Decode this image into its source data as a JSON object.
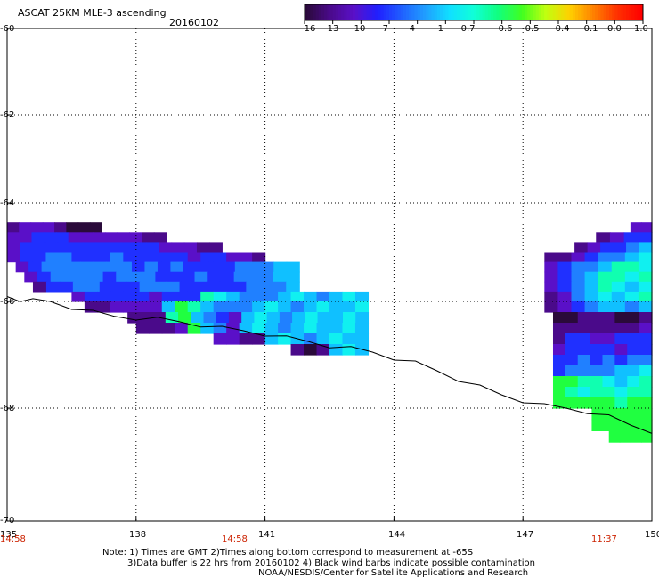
{
  "header": {
    "title": "ASCAT 25KM MLE-3 ascending",
    "date": "20160102"
  },
  "colorbar": {
    "labels": [
      "-16",
      "-13",
      "-10",
      "-7",
      "-4",
      "-1",
      "-0.7",
      "-0.6",
      "-0.5",
      "-0.4",
      "-0.1",
      "0.0",
      "1.0"
    ],
    "colors": [
      "#2a0a3a",
      "#4a0a8a",
      "#5a10c8",
      "#2020ff",
      "#2060ff",
      "#20a0ff",
      "#10e0ff",
      "#10ffd8",
      "#10ff80",
      "#40ff20",
      "#c0ff10",
      "#ffd000",
      "#ff8000",
      "#ff3000",
      "#ff0000"
    ]
  },
  "axes": {
    "y_labels": [
      "-60",
      "-62",
      "-64",
      "-66",
      "-68",
      "-70"
    ],
    "x_labels": [
      "135",
      "138",
      "141",
      "144",
      "147",
      "150"
    ],
    "times": [
      "14:58",
      "14:58",
      "11:37"
    ]
  },
  "notes": {
    "line1": "Note: 1) Times are GMT 2)Times along bottom correspond to measurement at -65S",
    "line2": "3)Data buffer is 22 hrs from 20160102 4) Black wind barbs indicate possible contamination",
    "line3": "NOAA/NESDIS/Center for Satellite Applications and Research"
  },
  "map_data": {
    "lon_range": [
      135,
      150
    ],
    "lat_range": [
      -70,
      -60
    ],
    "coastline_lonlat": [
      [
        135.0,
        -65.9
      ],
      [
        135.3,
        -65.95
      ],
      [
        135.6,
        -65.98
      ],
      [
        136.0,
        -66.0
      ],
      [
        136.5,
        -66.1
      ],
      [
        137.0,
        -66.2
      ],
      [
        137.5,
        -66.28
      ],
      [
        138.0,
        -66.3
      ],
      [
        138.5,
        -66.33
      ],
      [
        139.0,
        -66.38
      ],
      [
        139.5,
        -66.43
      ],
      [
        140.0,
        -66.5
      ],
      [
        140.5,
        -66.55
      ],
      [
        141.0,
        -66.6
      ],
      [
        141.5,
        -66.68
      ],
      [
        142.0,
        -66.75
      ],
      [
        142.5,
        -66.82
      ],
      [
        143.0,
        -66.88
      ],
      [
        143.5,
        -66.95
      ],
      [
        144.0,
        -67.05
      ],
      [
        144.5,
        -67.15
      ],
      [
        145.0,
        -67.3
      ],
      [
        145.5,
        -67.45
      ],
      [
        146.0,
        -67.6
      ],
      [
        146.5,
        -67.75
      ],
      [
        147.0,
        -67.85
      ],
      [
        147.5,
        -67.95
      ],
      [
        148.0,
        -68.0
      ],
      [
        148.5,
        -68.05
      ],
      [
        149.0,
        -68.15
      ],
      [
        149.5,
        -68.3
      ],
      [
        150.0,
        -68.4
      ]
    ],
    "swaths": [
      {
        "name": "west",
        "rows": [
          {
            "lat": -64.5,
            "lon": [
              135.0,
              137.2
            ],
            "vals": [
              -12,
              -10,
              -9,
              -10,
              -12,
              -15,
              -14,
              -14
            ]
          },
          {
            "lat": -64.7,
            "lon": [
              135.0,
              138.7
            ],
            "vals": [
              -10,
              -8,
              -7,
              -6,
              -7,
              -9,
              -8,
              -9,
              -10,
              -9,
              -8,
              -12,
              -13
            ]
          },
          {
            "lat": -64.9,
            "lon": [
              135.0,
              140.0
            ],
            "vals": [
              -9,
              -7,
              -6,
              -5,
              -5,
              -6,
              -7,
              -5,
              -6,
              -7,
              -6,
              -7,
              -8,
              -9,
              -10,
              -11,
              -12
            ]
          },
          {
            "lat": -65.1,
            "lon": [
              135.0,
              141.0
            ],
            "vals": [
              -8,
              -6,
              -5,
              -4,
              -4,
              -5,
              -6,
              -5,
              -4,
              -5,
              -6,
              -5,
              -6,
              -7,
              -8,
              -7,
              -6,
              -9,
              -10,
              -11
            ]
          },
          {
            "lat": -65.3,
            "lon": [
              135.2,
              141.8
            ],
            "vals": [
              -9,
              -5,
              -4,
              -4,
              -3,
              -4,
              -4,
              -3,
              -4,
              -5,
              -4,
              -5,
              -4,
              -6,
              -7,
              -6,
              -5,
              -4,
              -3,
              -2,
              -1,
              -1
            ]
          },
          {
            "lat": -65.5,
            "lon": [
              135.4,
              141.8
            ],
            "vals": [
              -10,
              -6,
              -4,
              -3,
              -3,
              -4,
              -5,
              -4,
              -3,
              -4,
              -5,
              -6,
              -5,
              -4,
              -6,
              -5,
              -4,
              -3,
              -2,
              -1,
              -1
            ]
          },
          {
            "lat": -65.7,
            "lon": [
              135.6,
              141.8
            ],
            "vals": [
              -11,
              -7,
              -5,
              -4,
              -4,
              -5,
              -6,
              -5,
              -4,
              -3,
              -4,
              -5,
              -6,
              -7,
              -6,
              -5,
              -4,
              -3,
              -2,
              -1
            ]
          },
          {
            "lat": -65.9,
            "lon": [
              136.5,
              143.4
            ],
            "vals": [
              -9,
              -7,
              -6,
              -5,
              -6,
              -7,
              -8,
              -7,
              -6,
              -5,
              -0.6,
              -0.7,
              -1,
              -2,
              -3,
              -2,
              -1,
              -0.7,
              -1,
              -2,
              -1,
              -0.7,
              -1
            ]
          },
          {
            "lat": -66.1,
            "lon": [
              136.8,
              143.4
            ],
            "vals": [
              -11,
              -12,
              -10,
              -8,
              -9,
              -10,
              -1,
              -0.5,
              -0.6,
              -1,
              -2,
              -4,
              -3,
              -1,
              -0.7,
              -1,
              -2,
              -1,
              -0.7,
              -1,
              -1,
              -0.7
            ]
          },
          {
            "lat": -66.3,
            "lon": [
              137.8,
              143.4
            ],
            "vals": [
              -13,
              -12,
              -11,
              -0.6,
              -0.5,
              -1,
              -4,
              -7,
              -8,
              -1,
              -0.7,
              -1,
              -2,
              -1,
              -0.7,
              -1,
              -1,
              -0.7,
              -1
            ]
          },
          {
            "lat": -66.5,
            "lon": [
              138.0,
              143.4
            ],
            "vals": [
              -13,
              -12,
              -11,
              -9,
              -0.5,
              -1,
              -3,
              -9,
              -1,
              -0.7,
              -1,
              -2,
              -1,
              -0.7,
              -1,
              -1,
              -0.7,
              -1
            ]
          },
          {
            "lat": -66.7,
            "lon": [
              139.8,
              143.4
            ],
            "vals": [
              -10,
              -9,
              -12,
              -11,
              -1,
              -0.7,
              -1,
              -2,
              -1,
              -0.7,
              -1,
              -1
            ]
          },
          {
            "lat": -66.9,
            "lon": [
              141.6,
              143.4
            ],
            "vals": [
              -13,
              -14,
              -12,
              -1,
              -0.7,
              -1
            ]
          }
        ]
      },
      {
        "name": "east",
        "rows": [
          {
            "lat": -64.5,
            "lon": [
              149.5,
              150.0
            ],
            "vals": [
              -10,
              -8
            ]
          },
          {
            "lat": -64.7,
            "lon": [
              148.7,
              150.0
            ],
            "vals": [
              -13,
              -10,
              -7,
              -5
            ]
          },
          {
            "lat": -64.9,
            "lon": [
              148.2,
              150.0
            ],
            "vals": [
              -13,
              -10,
              -7,
              -5,
              -3,
              -1
            ]
          },
          {
            "lat": -65.1,
            "lon": [
              147.5,
              150.0
            ],
            "vals": [
              -12,
              -11,
              -9,
              -6,
              -4,
              -2,
              -1,
              -0.7
            ]
          },
          {
            "lat": -65.3,
            "lon": [
              147.5,
              150.0
            ],
            "vals": [
              -9,
              -6,
              -4,
              -2,
              -1,
              -0.6,
              -0.6,
              -0.7
            ]
          },
          {
            "lat": -65.5,
            "lon": [
              147.5,
              150.0
            ],
            "vals": [
              -9,
              -6,
              -4,
              -1,
              -0.6,
              -0.6,
              -0.7,
              -0.6
            ]
          },
          {
            "lat": -65.7,
            "lon": [
              147.5,
              150.0
            ],
            "vals": [
              -10,
              -7,
              -3,
              -1,
              -0.6,
              -0.7,
              -1,
              -0.7
            ]
          },
          {
            "lat": -65.9,
            "lon": [
              147.5,
              150.0
            ],
            "vals": [
              -11,
              -8,
              -4,
              -1,
              -0.7,
              -1,
              -0.7,
              -0.6
            ]
          },
          {
            "lat": -66.1,
            "lon": [
              147.5,
              150.0
            ],
            "vals": [
              -12,
              -9,
              -6,
              -3,
              -1,
              -1,
              -2,
              -1
            ]
          },
          {
            "lat": -66.3,
            "lon": [
              147.7,
              150.0
            ],
            "vals": [
              -15,
              -14,
              -13,
              -12,
              -13,
              -15,
              -14,
              -13
            ]
          },
          {
            "lat": -66.5,
            "lon": [
              147.7,
              150.0
            ],
            "vals": [
              -13,
              -12,
              -11,
              -12,
              -13,
              -12,
              -11,
              -10
            ]
          },
          {
            "lat": -66.7,
            "lon": [
              147.7,
              150.0
            ],
            "vals": [
              -11,
              -7,
              -6,
              -8,
              -10,
              -7,
              -5,
              -6
            ]
          },
          {
            "lat": -66.9,
            "lon": [
              147.7,
              150.0
            ],
            "vals": [
              -9,
              -7,
              -5,
              -6,
              -7,
              -8,
              -6,
              -5
            ]
          },
          {
            "lat": -67.1,
            "lon": [
              147.7,
              150.0
            ],
            "vals": [
              -7,
              -5,
              -4,
              -5,
              -4,
              -6,
              -4,
              -3
            ]
          },
          {
            "lat": -67.3,
            "lon": [
              147.7,
              150.0
            ],
            "vals": [
              -5,
              -4,
              -3,
              -4,
              -3,
              -1,
              -1,
              -0.7
            ]
          },
          {
            "lat": -67.5,
            "lon": [
              147.7,
              150.0
            ],
            "vals": [
              -0.5,
              -0.5,
              -0.6,
              -0.6,
              -0.7,
              -1,
              -0.7,
              -0.6
            ]
          },
          {
            "lat": -67.7,
            "lon": [
              147.7,
              150.0
            ],
            "vals": [
              -0.5,
              -0.6,
              -0.7,
              -0.6,
              -0.6,
              -0.7,
              -0.6,
              -0.6
            ]
          },
          {
            "lat": -67.9,
            "lon": [
              147.7,
              150.0
            ],
            "vals": [
              -0.5,
              -0.5,
              -0.5,
              -0.5,
              -0.5,
              -0.6,
              -0.5,
              -0.5
            ]
          },
          {
            "lat": -68.1,
            "lon": [
              148.6,
              150.0
            ],
            "vals": [
              -0.5,
              -0.5,
              -0.5,
              -0.5,
              -0.5
            ]
          },
          {
            "lat": -68.3,
            "lon": [
              148.6,
              150.0
            ],
            "vals": [
              -0.5,
              -0.5,
              -0.5,
              -0.5,
              -0.5
            ]
          },
          {
            "lat": -68.5,
            "lon": [
              149.0,
              150.0
            ],
            "vals": [
              -0.5,
              -0.5,
              -0.5,
              -0.5
            ]
          }
        ]
      }
    ]
  }
}
